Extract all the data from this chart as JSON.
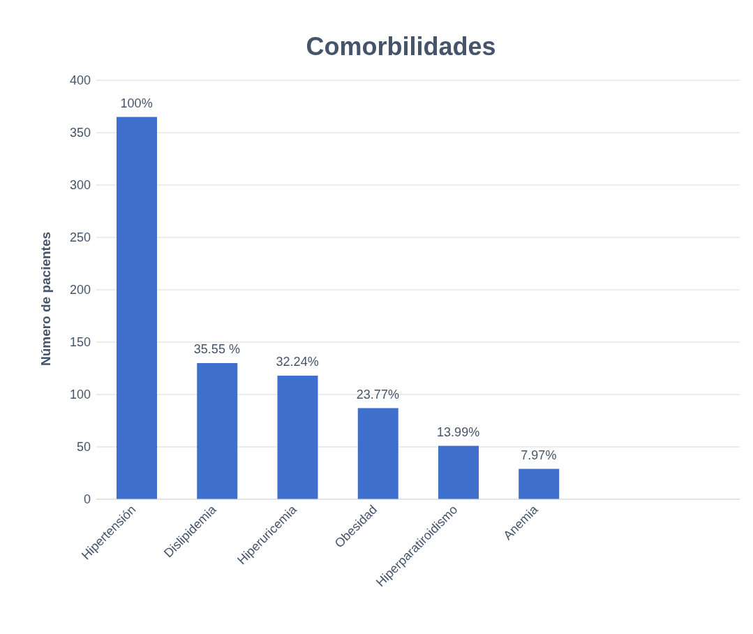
{
  "chart_data": {
    "type": "bar",
    "title": "Comorbilidades",
    "ylabel": "Número de pacientes",
    "categories": [
      "Hipertensión",
      "Dislipidemia",
      "Hiperuricemia",
      "Obesidad",
      "Hiperparatiroidismo",
      "Anemia",
      null,
      null
    ],
    "values": [
      365,
      130,
      118,
      87,
      51,
      29,
      null,
      null
    ],
    "annotations": [
      {
        "text": "100%",
        "x": "Hipertensión",
        "y": 365
      },
      {
        "text": "35.55 %",
        "x": "Dislipidemia",
        "y": 130
      },
      {
        "text": "32.24%",
        "x": "Hiperuricemia",
        "y": 118
      },
      {
        "text": "23.77%",
        "x": "Obesidad",
        "y": 87
      },
      {
        "text": "13.99%",
        "x": "Hiperparatiroidismo",
        "y": 51
      },
      {
        "text": "7.97%",
        "x": "Anemia",
        "y": 29
      }
    ],
    "color": "#3f6fcd",
    "ylim": [
      0,
      400
    ],
    "yticks": [
      0,
      50,
      100,
      150,
      200,
      250,
      300,
      350,
      400
    ],
    "grid": "y"
  }
}
